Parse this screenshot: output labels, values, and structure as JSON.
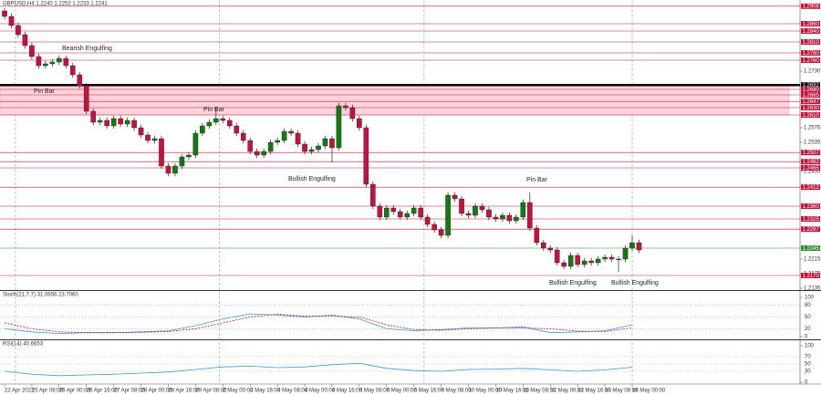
{
  "chart_data": [
    {
      "type": "candlestick",
      "title": "GBPUSD,H4  1.2240 1.2252 1.2233 1.2241",
      "categories": [
        "22 Apr 2022",
        null,
        null,
        null,
        "25 Apr 08:00",
        null,
        null,
        null,
        "26 Apr 00:00",
        null,
        null,
        null,
        "26 Apr 16:00",
        null,
        null,
        null,
        "27 Apr 08:00",
        null,
        null,
        null,
        "28 Apr 00:00",
        null,
        null,
        null,
        "28 Apr 16:00",
        null,
        null,
        null,
        "29 Apr 08:00",
        null,
        null,
        null,
        "2 May 00:00",
        null,
        null,
        null,
        "2 May 16:00",
        null,
        null,
        null,
        "3 May 08:00",
        null,
        null,
        null,
        "4 May 00:00",
        null,
        null,
        null,
        "4 May 16:00",
        null,
        null,
        null,
        "5 May 08:00",
        null,
        null,
        null,
        "6 May 00:00",
        null,
        null,
        null,
        "6 May 16:00",
        null,
        null,
        null,
        "9 May 08:00",
        null,
        null,
        null,
        "10 May 00:00",
        null,
        null,
        null,
        "10 May 16:00",
        null,
        null,
        null,
        "11 May 08:00",
        null,
        null,
        null,
        "12 May 00:00",
        null,
        null,
        null,
        "12 May 16:00",
        null,
        null,
        null,
        "13 May 08:00",
        null,
        null,
        null,
        "16 May 00:00",
        null
      ],
      "open": [
        1.2895,
        1.288,
        1.2855,
        1.283,
        1.28,
        1.277,
        1.2745,
        1.275,
        1.2755,
        1.2765,
        1.2745,
        1.272,
        1.269,
        1.262,
        1.259,
        1.2595,
        1.258,
        1.26,
        1.2585,
        1.2595,
        1.2575,
        1.2555,
        1.254,
        1.2545,
        1.247,
        1.245,
        1.247,
        1.2495,
        1.25,
        1.256,
        1.258,
        1.259,
        1.26,
        1.2595,
        1.258,
        1.256,
        1.254,
        1.251,
        1.25,
        1.251,
        1.2535,
        1.254,
        1.2565,
        1.256,
        1.253,
        1.251,
        1.2515,
        1.2525,
        1.2545,
        1.252,
        1.2635,
        1.263,
        1.26,
        1.2575,
        1.242,
        1.236,
        1.233,
        1.2355,
        1.2345,
        1.233,
        1.234,
        1.2355,
        1.233,
        1.231,
        1.2295,
        1.228,
        1.239,
        1.238,
        1.234,
        1.2335,
        1.236,
        1.235,
        1.233,
        1.2325,
        1.2335,
        1.232,
        1.233,
        1.237,
        1.23,
        1.226,
        1.2245,
        1.224,
        1.2205,
        1.2195,
        1.2225,
        1.22,
        1.221,
        1.2205,
        1.2215,
        1.222,
        1.2215,
        1.2215,
        1.2245,
        1.226
      ],
      "high": [
        1.2903,
        1.2888,
        1.2863,
        1.2838,
        1.2808,
        1.2778,
        1.2758,
        1.2763,
        1.2773,
        1.2773,
        1.2753,
        1.2728,
        1.2698,
        1.2628,
        1.2603,
        1.2603,
        1.2608,
        1.2608,
        1.2603,
        1.2603,
        1.2583,
        1.2563,
        1.2553,
        1.2553,
        1.2478,
        1.2478,
        1.2503,
        1.2508,
        1.2568,
        1.2588,
        1.2598,
        1.263,
        1.2608,
        1.2603,
        1.2588,
        1.2568,
        1.2548,
        1.2518,
        1.2518,
        1.2543,
        1.2548,
        1.2573,
        1.2573,
        1.2568,
        1.2538,
        1.2523,
        1.2533,
        1.2553,
        1.2553,
        1.2643,
        1.2643,
        1.2638,
        1.2608,
        1.2583,
        1.2428,
        1.2368,
        1.2363,
        1.2363,
        1.2353,
        1.2348,
        1.2363,
        1.2363,
        1.2338,
        1.2318,
        1.2303,
        1.2398,
        1.2398,
        1.2388,
        1.2348,
        1.2368,
        1.2368,
        1.2358,
        1.2338,
        1.2343,
        1.2343,
        1.2338,
        1.2378,
        1.2398,
        1.2308,
        1.2268,
        1.2253,
        1.2248,
        1.2213,
        1.2233,
        1.2233,
        1.2218,
        1.2218,
        1.2223,
        1.2228,
        1.2228,
        1.2223,
        1.2253,
        1.228,
        1.2268
      ],
      "low": [
        1.2872,
        1.2847,
        1.2822,
        1.2792,
        1.2762,
        1.2737,
        1.2737,
        1.2742,
        1.2747,
        1.2737,
        1.2712,
        1.2682,
        1.2612,
        1.2582,
        1.2582,
        1.2572,
        1.2572,
        1.2577,
        1.2577,
        1.2567,
        1.2547,
        1.2532,
        1.2532,
        1.2462,
        1.2442,
        1.2442,
        1.2462,
        1.2487,
        1.2492,
        1.2552,
        1.2572,
        1.2582,
        1.2587,
        1.2572,
        1.2552,
        1.2532,
        1.2502,
        1.2492,
        1.2492,
        1.2502,
        1.2527,
        1.2532,
        1.2552,
        1.2522,
        1.2502,
        1.2502,
        1.2507,
        1.2517,
        1.248,
        1.2512,
        1.2622,
        1.2592,
        1.2567,
        1.2412,
        1.2352,
        1.2322,
        1.2322,
        1.2337,
        1.2322,
        1.2322,
        1.2332,
        1.2322,
        1.2302,
        1.2287,
        1.2272,
        1.2272,
        1.2372,
        1.2332,
        1.2327,
        1.2327,
        1.2342,
        1.2322,
        1.2317,
        1.2317,
        1.2312,
        1.2312,
        1.2322,
        1.2292,
        1.2252,
        1.2237,
        1.2232,
        1.2197,
        1.2187,
        1.2187,
        1.2192,
        1.2192,
        1.2197,
        1.2197,
        1.2207,
        1.2207,
        1.218,
        1.2207,
        1.2237,
        1.2232
      ],
      "close": [
        1.288,
        1.2855,
        1.283,
        1.28,
        1.277,
        1.2745,
        1.275,
        1.2755,
        1.2765,
        1.2745,
        1.272,
        1.269,
        1.262,
        1.259,
        1.2595,
        1.258,
        1.26,
        1.2585,
        1.2595,
        1.2575,
        1.2555,
        1.254,
        1.2545,
        1.247,
        1.245,
        1.247,
        1.2495,
        1.25,
        1.256,
        1.258,
        1.259,
        1.26,
        1.2595,
        1.258,
        1.256,
        1.254,
        1.251,
        1.25,
        1.251,
        1.2535,
        1.254,
        1.2565,
        1.256,
        1.253,
        1.251,
        1.2515,
        1.2525,
        1.2545,
        1.252,
        1.2635,
        1.263,
        1.26,
        1.2575,
        1.242,
        1.236,
        1.233,
        1.2355,
        1.2345,
        1.233,
        1.234,
        1.2355,
        1.233,
        1.231,
        1.2295,
        1.228,
        1.239,
        1.238,
        1.234,
        1.2335,
        1.236,
        1.235,
        1.233,
        1.2325,
        1.2335,
        1.232,
        1.233,
        1.237,
        1.23,
        1.226,
        1.2245,
        1.224,
        1.2205,
        1.2195,
        1.2225,
        1.22,
        1.221,
        1.2205,
        1.2215,
        1.222,
        1.2215,
        1.2215,
        1.2245,
        1.226,
        1.224
      ],
      "up_color": "#137a13",
      "down_color": "#c8103c",
      "ylim": [
        1.213,
        1.2925
      ],
      "yticks": [
        {
          "value": 1.273,
          "label": "1.2730"
        },
        {
          "value": 1.2575,
          "label": "1.2575"
        },
        {
          "value": 1.2535,
          "label": "1.2535"
        },
        {
          "value": 1.2455,
          "label": "1.2455"
        },
        {
          "value": 1.2215,
          "label": "1.2215"
        },
        {
          "value": 1.2175,
          "label": "1.2175"
        },
        {
          "value": 1.2135,
          "label": "1.2135"
        }
      ],
      "zone": {
        "from": 1.261,
        "to": 1.2692,
        "color": "#ffd3dc"
      },
      "levels": [
        {
          "value": 1.2908,
          "label": "1.2908",
          "color": "#c0143c"
        },
        {
          "value": 1.286,
          "label": "1.2860",
          "color": "#c0143c"
        },
        {
          "value": 1.284,
          "label": "1.2840",
          "color": "#c0143c"
        },
        {
          "value": 1.281,
          "label": "1.2810",
          "color": "#c0143c"
        },
        {
          "value": 1.278,
          "label": "1.2780",
          "color": "#c0143c"
        },
        {
          "value": 1.276,
          "label": "1.2760",
          "color": "#c0143c"
        },
        {
          "value": 1.2692,
          "label": "1.2692",
          "color": "#000000"
        },
        {
          "value": 1.268,
          "label": "1.2680",
          "color": "#c0143c"
        },
        {
          "value": 1.2665,
          "label": "1.2665",
          "color": "#c0143c"
        },
        {
          "value": 1.2647,
          "label": "1.2647",
          "color": "#c0143c"
        },
        {
          "value": 1.263,
          "label": "1.2630",
          "color": "#c0143c"
        },
        {
          "value": 1.261,
          "label": "1.2610",
          "color": "#c0143c"
        },
        {
          "value": 1.2507,
          "label": "1.2507",
          "color": "#c0143c"
        },
        {
          "value": 1.2482,
          "label": "1.2482",
          "color": "#c0143c"
        },
        {
          "value": 1.2465,
          "label": "1.2465",
          "color": "#c0143c"
        },
        {
          "value": 1.2412,
          "label": "1.2412",
          "color": "#c0143c"
        },
        {
          "value": 1.236,
          "label": "1.2360",
          "color": "#c0143c"
        },
        {
          "value": 1.2325,
          "label": "1.2325",
          "color": "#c0143c"
        },
        {
          "value": 1.2297,
          "label": "1.2297",
          "color": "#c0143c"
        },
        {
          "value": 1.2245,
          "label": "1.2245",
          "color": "#2e8b2e"
        },
        {
          "value": 1.217,
          "label": "1.2170",
          "color": "#c0143c"
        }
      ],
      "annotations": [
        "Bearish Engulfing",
        "Pin Bar",
        "Pin Bar",
        "Bullish Engulfing",
        "Pin Bar",
        "Bullish Engulfing",
        "Bullish Engulfing"
      ]
    },
    {
      "type": "line",
      "title": "Stoch(21,7,7) 31.0656 23.7060",
      "x": [
        0,
        4,
        8,
        12,
        16,
        20,
        24,
        28,
        32,
        36,
        40,
        44,
        48,
        52,
        56,
        60,
        64,
        68,
        72,
        76,
        80,
        84,
        88,
        92
      ],
      "series": [
        {
          "color": "#3a9fc8",
          "dash": false,
          "values": [
            20,
            12,
            8,
            10,
            10,
            12,
            15,
            28,
            45,
            58,
            55,
            50,
            55,
            45,
            20,
            15,
            18,
            22,
            22,
            25,
            10,
            12,
            15,
            30
          ]
        },
        {
          "color": "#c8103c",
          "dash": true,
          "values": [
            35,
            20,
            12,
            10,
            10,
            11,
            13,
            20,
            35,
            50,
            57,
            52,
            52,
            50,
            30,
            18,
            16,
            20,
            22,
            22,
            20,
            14,
            13,
            22
          ]
        }
      ],
      "ylim": [
        0,
        100
      ],
      "yticks": [
        0,
        20,
        50,
        80,
        100
      ]
    },
    {
      "type": "line",
      "title": "RSI(14) 40.6653",
      "x": [
        0,
        4,
        8,
        12,
        16,
        20,
        24,
        28,
        32,
        36,
        40,
        44,
        48,
        52,
        56,
        60,
        64,
        68,
        72,
        76,
        80,
        84,
        88,
        92
      ],
      "series": [
        {
          "color": "#3a9fc8",
          "dash": false,
          "values": [
            30,
            22,
            18,
            20,
            22,
            25,
            28,
            35,
            42,
            44,
            40,
            42,
            48,
            52,
            38,
            32,
            30,
            35,
            36,
            38,
            34,
            30,
            34,
            41
          ]
        }
      ],
      "ylim": [
        0,
        100
      ],
      "yticks": [
        0,
        30,
        50,
        70,
        100
      ]
    }
  ]
}
